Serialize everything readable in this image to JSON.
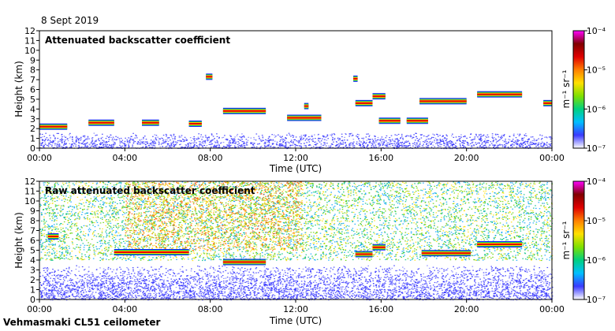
{
  "date": "8 Sept 2019",
  "footer": "Vehmasmaki CL51 ceilometer",
  "colorbar": {
    "top_label": "10⁻⁴",
    "labels": [
      "10⁻⁴",
      "10⁻⁵",
      "10⁻⁶",
      "10⁻⁷"
    ],
    "unit": "m⁻¹ sr⁻¹",
    "gradient": [
      "#ffffff",
      "#3a3aff",
      "#00bfff",
      "#00d080",
      "#7fe000",
      "#ffe000",
      "#ff8000",
      "#e00000",
      "#800000",
      "#ff00ff"
    ]
  },
  "chart_data": [
    {
      "type": "heatmap",
      "title": "Attenuated backscatter coefficient",
      "xlabel": "Time (UTC)",
      "ylabel": "Height (km)",
      "xticks": [
        "00:00",
        "04:00",
        "08:00",
        "12:00",
        "16:00",
        "20:00",
        "00:00"
      ],
      "yticks": [
        "0",
        "1",
        "2",
        "3",
        "4",
        "5",
        "6",
        "7",
        "8",
        "9",
        "10",
        "11",
        "12"
      ],
      "xlim_hours": [
        0,
        24
      ],
      "ylim_km": [
        0,
        12
      ],
      "features": [
        {
          "name": "boundary-layer",
          "kind": "layer",
          "t0": 0,
          "t1": 24,
          "h0": 0,
          "h1": 1.6
        },
        {
          "name": "cloud",
          "t0": 0.0,
          "t1": 1.3,
          "h": 2.2
        },
        {
          "name": "cloud",
          "t0": 2.3,
          "t1": 3.5,
          "h": 2.6
        },
        {
          "name": "cloud",
          "t0": 4.8,
          "t1": 5.6,
          "h": 2.6
        },
        {
          "name": "cloud",
          "t0": 7.0,
          "t1": 7.6,
          "h": 2.5
        },
        {
          "name": "cloud",
          "t0": 7.8,
          "t1": 8.1,
          "h": 7.3
        },
        {
          "name": "cloud",
          "t0": 8.6,
          "t1": 10.6,
          "h": 3.8
        },
        {
          "name": "cloud",
          "t0": 11.6,
          "t1": 13.2,
          "h": 3.1
        },
        {
          "name": "cloud",
          "t0": 12.4,
          "t1": 12.6,
          "h": 4.3
        },
        {
          "name": "cloud",
          "t0": 14.7,
          "t1": 14.9,
          "h": 7.1
        },
        {
          "name": "cloud",
          "t0": 14.8,
          "t1": 15.6,
          "h": 4.6
        },
        {
          "name": "cloud",
          "t0": 15.6,
          "t1": 16.2,
          "h": 5.3
        },
        {
          "name": "cloud",
          "t0": 15.9,
          "t1": 16.9,
          "h": 2.8
        },
        {
          "name": "cloud",
          "t0": 17.2,
          "t1": 18.2,
          "h": 2.8
        },
        {
          "name": "cloud",
          "t0": 17.8,
          "t1": 20.0,
          "h": 4.8
        },
        {
          "name": "cloud",
          "t0": 20.5,
          "t1": 22.6,
          "h": 5.5
        },
        {
          "name": "cloud",
          "t0": 23.6,
          "t1": 24.0,
          "h": 4.6
        }
      ]
    },
    {
      "type": "heatmap",
      "title": "Raw attenuated backscatter coefficient",
      "xlabel": "Time (UTC)",
      "ylabel": "Height (km)",
      "xticks": [
        "00:00",
        "04:00",
        "08:00",
        "12:00",
        "16:00",
        "20:00",
        "00:00"
      ],
      "yticks": [
        "0",
        "1",
        "2",
        "3",
        "4",
        "5",
        "6",
        "7",
        "8",
        "9",
        "10",
        "11",
        "12"
      ],
      "xlim_hours": [
        0,
        24
      ],
      "ylim_km": [
        0,
        12
      ],
      "features": [
        {
          "name": "noise-field",
          "kind": "layer",
          "t0": 0,
          "t1": 24,
          "h0": 4,
          "h1": 12
        },
        {
          "name": "dense-noise",
          "kind": "layer",
          "t0": 4.0,
          "t1": 12.3,
          "h0": 5,
          "h1": 12
        },
        {
          "name": "boundary-layer",
          "kind": "layer",
          "t0": 0,
          "t1": 24,
          "h0": 0,
          "h1": 3.5
        },
        {
          "name": "aerosol-layer",
          "t0": 0.4,
          "t1": 0.9,
          "h": 6.4
        },
        {
          "name": "aerosol-layer",
          "t0": 3.5,
          "t1": 7.0,
          "h": 4.8
        },
        {
          "name": "cloud",
          "t0": 8.6,
          "t1": 10.6,
          "h": 3.8
        },
        {
          "name": "cloud",
          "t0": 14.8,
          "t1": 15.6,
          "h": 4.6
        },
        {
          "name": "cloud",
          "t0": 15.6,
          "t1": 16.2,
          "h": 5.3
        },
        {
          "name": "cloud",
          "t0": 17.9,
          "t1": 20.2,
          "h": 4.7
        },
        {
          "name": "cloud",
          "t0": 20.5,
          "t1": 22.6,
          "h": 5.6
        }
      ]
    }
  ]
}
